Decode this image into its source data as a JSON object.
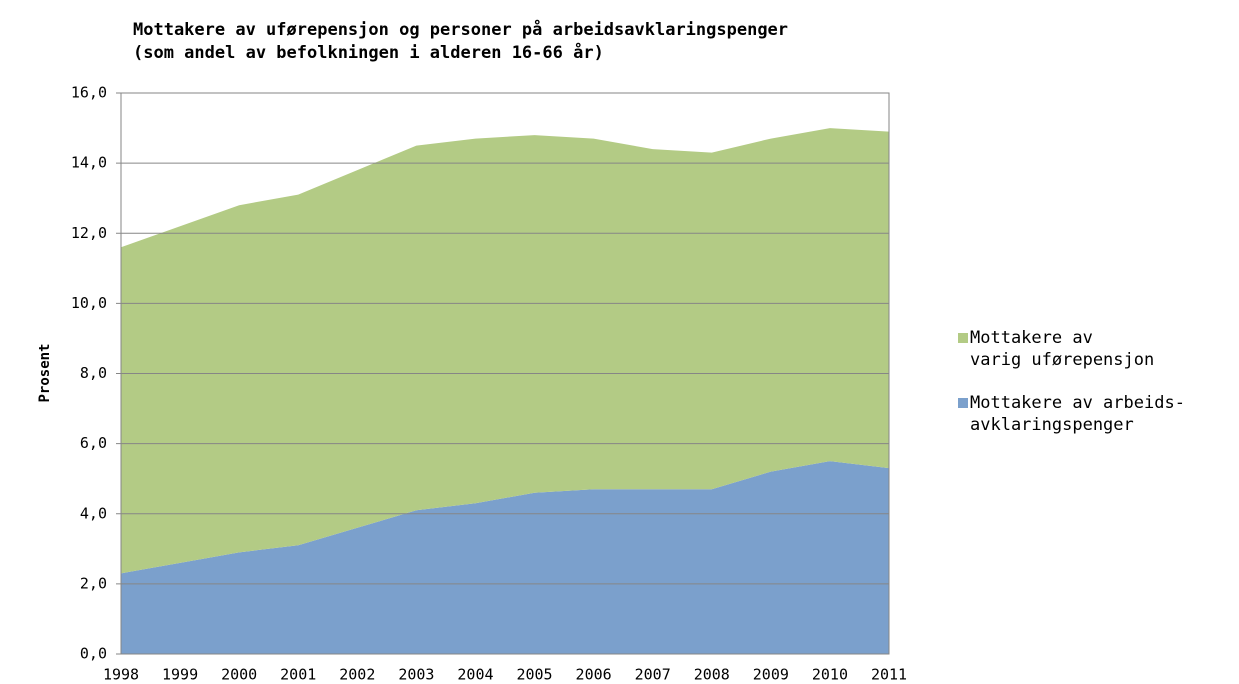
{
  "chart_data": {
    "type": "stacked_area",
    "title": "Mottakere av uførepensjon og personer på arbeidsavklaringspenger",
    "subtitle": "(som andel av befolkningen i alderen 16-66 år)",
    "y_label": "Prosent",
    "categories": [
      "1998",
      "1999",
      "2000",
      "2001",
      "2002",
      "2003",
      "2004",
      "2005",
      "2006",
      "2007",
      "2008",
      "2009",
      "2010",
      "2011"
    ],
    "series": [
      {
        "name": "Mottakere av arbeids-\navklaringspenger",
        "color": "#7ba0cc",
        "values": [
          2.3,
          2.6,
          2.9,
          3.1,
          3.6,
          4.1,
          4.3,
          4.6,
          4.7,
          4.7,
          4.7,
          5.2,
          5.5,
          5.3
        ]
      },
      {
        "name": "Mottakere av\nvarig uførepensjon",
        "color": "#b3cb85",
        "values": [
          9.3,
          9.6,
          9.9,
          10.0,
          10.2,
          10.4,
          10.4,
          10.2,
          10.0,
          9.7,
          9.6,
          9.5,
          9.5,
          9.6
        ]
      }
    ],
    "ylim": [
      0,
      16
    ],
    "yticks": [
      {
        "value": 0,
        "label": "0,0"
      },
      {
        "value": 2,
        "label": "2,0"
      },
      {
        "value": 4,
        "label": "4,0"
      },
      {
        "value": 6,
        "label": "6,0"
      },
      {
        "value": 8,
        "label": "8,0"
      },
      {
        "value": 10,
        "label": "10,0"
      },
      {
        "value": 12,
        "label": "12,0"
      },
      {
        "value": 14,
        "label": "14,0"
      },
      {
        "value": 16,
        "label": "16,0"
      }
    ],
    "grid": true,
    "legend": "right"
  }
}
